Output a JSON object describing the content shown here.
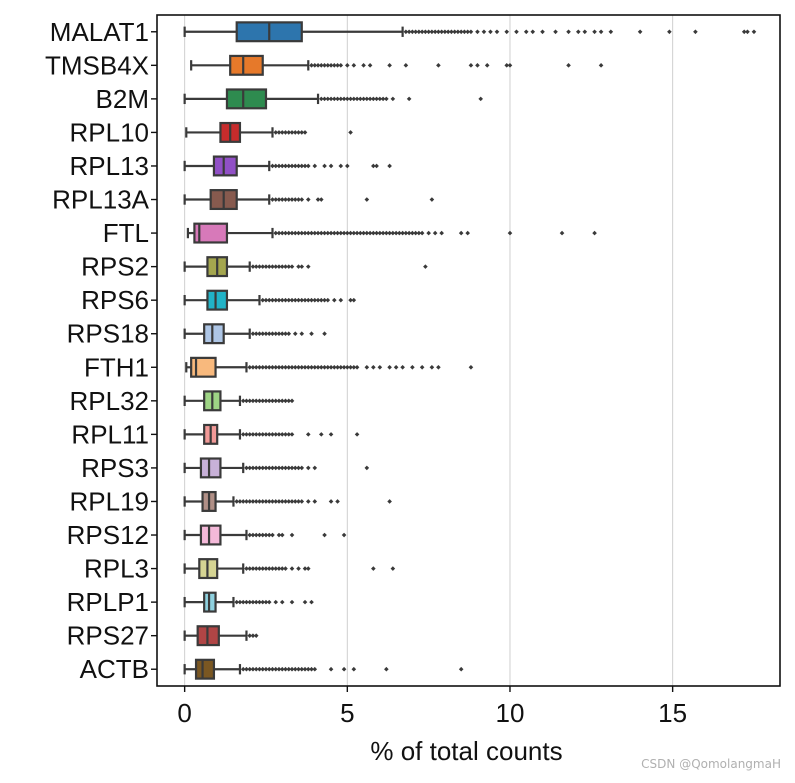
{
  "chart_data": {
    "type": "boxplot-horizontal",
    "title": "",
    "xlabel": "% of total counts",
    "ylabel": "",
    "xlim": [
      -0.85,
      18.3
    ],
    "xticks": [
      0,
      5,
      10,
      15
    ],
    "grid": "vertical",
    "whisker_color": "#3a3a3a",
    "genes": [
      {
        "name": "MALAT1",
        "color": "#2d75ad",
        "wlo": 0.0,
        "q1": 1.6,
        "med": 2.6,
        "q3": 3.6,
        "whi": 6.7,
        "outliers": [
          6.8,
          6.9,
          7.0,
          7.1,
          7.2,
          7.3,
          7.4,
          7.5,
          7.6,
          7.7,
          7.8,
          7.9,
          8.0,
          8.1,
          8.2,
          8.3,
          8.4,
          8.5,
          8.6,
          8.7,
          8.8,
          9.0,
          9.2,
          9.4,
          9.6,
          9.9,
          10.2,
          10.5,
          10.7,
          11.0,
          11.4,
          11.8,
          12.1,
          12.3,
          12.6,
          12.8,
          13.1,
          14.0,
          14.9,
          15.7,
          17.2,
          17.3,
          17.5
        ]
      },
      {
        "name": "TMSB4X",
        "color": "#e6792a",
        "wlo": 0.2,
        "q1": 1.4,
        "med": 1.8,
        "q3": 2.4,
        "whi": 3.8,
        "outliers": [
          3.9,
          4.0,
          4.1,
          4.2,
          4.3,
          4.4,
          4.5,
          4.6,
          4.7,
          4.8,
          5.0,
          5.2,
          5.5,
          5.7,
          6.3,
          6.8,
          7.8,
          8.8,
          9.0,
          9.3,
          9.9,
          10.0,
          11.8,
          12.8
        ]
      },
      {
        "name": "B2M",
        "color": "#2e8b4f",
        "wlo": 0.0,
        "q1": 1.3,
        "med": 1.8,
        "q3": 2.5,
        "whi": 4.1,
        "outliers": [
          4.2,
          4.3,
          4.4,
          4.5,
          4.6,
          4.7,
          4.8,
          4.9,
          5.0,
          5.1,
          5.2,
          5.3,
          5.4,
          5.5,
          5.6,
          5.7,
          5.8,
          5.9,
          6.0,
          6.1,
          6.2,
          6.4,
          6.9,
          9.1
        ]
      },
      {
        "name": "RPL10",
        "color": "#c72c2c",
        "wlo": 0.05,
        "q1": 1.1,
        "med": 1.4,
        "q3": 1.7,
        "whi": 2.7,
        "outliers": [
          2.8,
          2.9,
          3.0,
          3.1,
          3.2,
          3.3,
          3.4,
          3.5,
          3.6,
          3.7,
          5.1
        ]
      },
      {
        "name": "RPL13",
        "color": "#9150c6",
        "wlo": 0.0,
        "q1": 0.9,
        "med": 1.2,
        "q3": 1.6,
        "whi": 2.6,
        "outliers": [
          2.7,
          2.8,
          2.9,
          3.0,
          3.1,
          3.2,
          3.3,
          3.4,
          3.5,
          3.6,
          3.7,
          3.8,
          4.0,
          4.3,
          4.5,
          4.8,
          5.0,
          5.8,
          5.9,
          6.3
        ]
      },
      {
        "name": "RPL13A",
        "color": "#875a4e",
        "wlo": 0.0,
        "q1": 0.8,
        "med": 1.2,
        "q3": 1.6,
        "whi": 2.6,
        "outliers": [
          2.7,
          2.8,
          2.9,
          3.0,
          3.1,
          3.2,
          3.3,
          3.4,
          3.5,
          3.6,
          3.8,
          4.1,
          4.2,
          5.6,
          7.6
        ]
      },
      {
        "name": "FTL",
        "color": "#d779b9",
        "wlo": 0.1,
        "q1": 0.3,
        "med": 0.45,
        "q3": 1.3,
        "whi": 2.7,
        "outliers": [
          2.8,
          2.9,
          3.0,
          3.1,
          3.2,
          3.3,
          3.4,
          3.5,
          3.6,
          3.7,
          3.8,
          3.9,
          4.0,
          4.1,
          4.2,
          4.3,
          4.4,
          4.5,
          4.6,
          4.7,
          4.8,
          4.9,
          5.0,
          5.1,
          5.2,
          5.3,
          5.4,
          5.5,
          5.6,
          5.7,
          5.8,
          5.9,
          6.0,
          6.1,
          6.2,
          6.3,
          6.4,
          6.5,
          6.6,
          6.7,
          6.8,
          6.9,
          7.0,
          7.1,
          7.2,
          7.3,
          7.5,
          7.7,
          7.9,
          8.5,
          8.7,
          10.0,
          11.6,
          12.6
        ]
      },
      {
        "name": "RPS2",
        "color": "#a4a64e",
        "wlo": 0.0,
        "q1": 0.7,
        "med": 1.0,
        "q3": 1.3,
        "whi": 2.0,
        "outliers": [
          2.1,
          2.2,
          2.3,
          2.4,
          2.5,
          2.6,
          2.7,
          2.8,
          2.9,
          3.0,
          3.1,
          3.2,
          3.3,
          3.5,
          3.6,
          3.8,
          7.4
        ]
      },
      {
        "name": "RPS6",
        "color": "#21b3c7",
        "wlo": 0.0,
        "q1": 0.7,
        "med": 0.95,
        "q3": 1.3,
        "whi": 2.3,
        "outliers": [
          2.4,
          2.5,
          2.6,
          2.7,
          2.8,
          2.9,
          3.0,
          3.1,
          3.2,
          3.3,
          3.4,
          3.5,
          3.6,
          3.7,
          3.8,
          3.9,
          4.0,
          4.1,
          4.2,
          4.3,
          4.4,
          4.6,
          4.8,
          5.1,
          5.2
        ]
      },
      {
        "name": "RPS18",
        "color": "#aec6e6",
        "wlo": 0.0,
        "q1": 0.6,
        "med": 0.85,
        "q3": 1.2,
        "whi": 2.0,
        "outliers": [
          2.1,
          2.2,
          2.3,
          2.4,
          2.5,
          2.6,
          2.7,
          2.8,
          2.9,
          3.0,
          3.1,
          3.2,
          3.4,
          3.6,
          3.9,
          4.3
        ]
      },
      {
        "name": "FTH1",
        "color": "#f8b97d",
        "wlo": 0.05,
        "q1": 0.2,
        "med": 0.35,
        "q3": 0.95,
        "whi": 1.9,
        "outliers": [
          2.0,
          2.1,
          2.2,
          2.3,
          2.4,
          2.5,
          2.6,
          2.7,
          2.8,
          2.9,
          3.0,
          3.1,
          3.2,
          3.3,
          3.4,
          3.5,
          3.6,
          3.7,
          3.8,
          3.9,
          4.0,
          4.1,
          4.2,
          4.3,
          4.4,
          4.5,
          4.6,
          4.7,
          4.8,
          4.9,
          5.0,
          5.1,
          5.2,
          5.3,
          5.6,
          5.8,
          6.0,
          6.3,
          6.5,
          6.7,
          7.0,
          7.3,
          7.6,
          7.8,
          8.8
        ]
      },
      {
        "name": "RPL32",
        "color": "#9ed485",
        "wlo": 0.0,
        "q1": 0.6,
        "med": 0.85,
        "q3": 1.1,
        "whi": 1.7,
        "outliers": [
          1.8,
          1.9,
          2.0,
          2.1,
          2.2,
          2.3,
          2.4,
          2.5,
          2.6,
          2.7,
          2.8,
          2.9,
          3.0,
          3.1,
          3.2,
          3.3
        ]
      },
      {
        "name": "RPL11",
        "color": "#f29a98",
        "wlo": 0.0,
        "q1": 0.6,
        "med": 0.8,
        "q3": 1.0,
        "whi": 1.7,
        "outliers": [
          1.8,
          1.9,
          2.0,
          2.1,
          2.2,
          2.3,
          2.4,
          2.5,
          2.6,
          2.7,
          2.8,
          2.9,
          3.0,
          3.1,
          3.2,
          3.3,
          3.8,
          4.2,
          4.5,
          5.3
        ]
      },
      {
        "name": "RPS3",
        "color": "#c8b1d8",
        "wlo": 0.0,
        "q1": 0.5,
        "med": 0.75,
        "q3": 1.1,
        "whi": 1.8,
        "outliers": [
          1.9,
          2.0,
          2.1,
          2.2,
          2.3,
          2.4,
          2.5,
          2.6,
          2.7,
          2.8,
          2.9,
          3.0,
          3.1,
          3.2,
          3.3,
          3.4,
          3.5,
          3.6,
          3.8,
          4.0,
          5.6
        ]
      },
      {
        "name": "RPL19",
        "color": "#b08f86",
        "wlo": 0.0,
        "q1": 0.55,
        "med": 0.75,
        "q3": 0.95,
        "whi": 1.5,
        "outliers": [
          1.6,
          1.7,
          1.8,
          1.9,
          2.0,
          2.1,
          2.2,
          2.3,
          2.4,
          2.5,
          2.6,
          2.7,
          2.8,
          2.9,
          3.0,
          3.1,
          3.2,
          3.3,
          3.4,
          3.5,
          3.6,
          3.8,
          4.0,
          4.5,
          4.7,
          6.3
        ]
      },
      {
        "name": "RPS12",
        "color": "#f4b9d9",
        "wlo": 0.0,
        "q1": 0.5,
        "med": 0.75,
        "q3": 1.1,
        "whi": 1.9,
        "outliers": [
          2.0,
          2.1,
          2.2,
          2.3,
          2.4,
          2.5,
          2.6,
          2.7,
          2.9,
          3.0,
          3.3,
          4.3,
          4.9
        ]
      },
      {
        "name": "RPL3",
        "color": "#d5d493",
        "wlo": 0.0,
        "q1": 0.45,
        "med": 0.7,
        "q3": 1.0,
        "whi": 1.8,
        "outliers": [
          1.9,
          2.0,
          2.1,
          2.2,
          2.3,
          2.4,
          2.5,
          2.6,
          2.7,
          2.8,
          2.9,
          3.0,
          3.1,
          3.3,
          3.5,
          3.7,
          3.8,
          5.8,
          6.4
        ]
      },
      {
        "name": "RPLP1",
        "color": "#8fd1df",
        "wlo": 0.0,
        "q1": 0.6,
        "med": 0.75,
        "q3": 0.95,
        "whi": 1.5,
        "outliers": [
          1.6,
          1.7,
          1.8,
          1.9,
          2.0,
          2.1,
          2.2,
          2.3,
          2.4,
          2.5,
          2.6,
          2.8,
          3.0,
          3.3,
          3.7,
          3.9
        ]
      },
      {
        "name": "RPS27",
        "color": "#b04545",
        "wlo": 0.0,
        "q1": 0.4,
        "med": 0.7,
        "q3": 1.05,
        "whi": 1.9,
        "outliers": [
          2.0,
          2.1,
          2.2
        ]
      },
      {
        "name": "ACTB",
        "color": "#7a5722",
        "wlo": 0.0,
        "q1": 0.35,
        "med": 0.55,
        "q3": 0.9,
        "whi": 1.7,
        "outliers": [
          1.8,
          1.9,
          2.0,
          2.1,
          2.2,
          2.3,
          2.4,
          2.5,
          2.6,
          2.7,
          2.8,
          2.9,
          3.0,
          3.1,
          3.2,
          3.3,
          3.4,
          3.5,
          3.6,
          3.7,
          3.8,
          3.9,
          4.0,
          4.5,
          4.9,
          5.2,
          6.2,
          8.5
        ]
      }
    ]
  },
  "watermark": "CSDN @QomolangmaH"
}
